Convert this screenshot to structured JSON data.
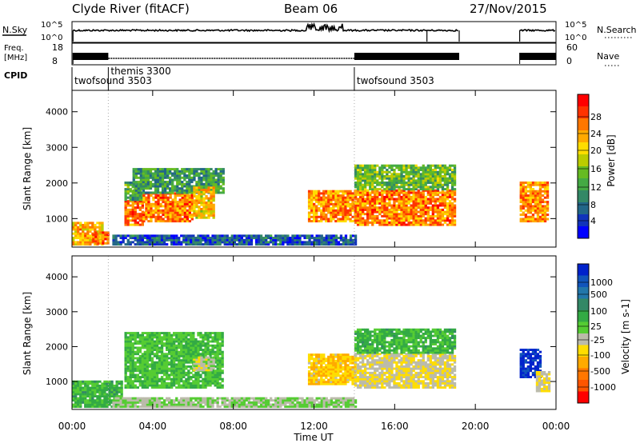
{
  "header": {
    "station": "Clyde River (fitACF)",
    "beam": "Beam 06",
    "date": "27/Nov/2015"
  },
  "strips": {
    "nsky_label": "N.Sky",
    "nsearch_label": "N.Search",
    "log_top": "10^5",
    "log_bottom": "10^0",
    "freq_label": "Freq.",
    "freq_unit": "[MHz]",
    "freq_ticks": [
      "18",
      "8"
    ],
    "nave_label": "Nave",
    "nave_ticks": [
      "60",
      "0"
    ],
    "cpid_label": "CPID",
    "cpid_segments": [
      {
        "name": "twofsound 3503",
        "start_hour": 0.0
      },
      {
        "name": "themis 3300",
        "start_hour": 1.8
      },
      {
        "name": "twofsound 3503",
        "start_hour": 14.0
      }
    ]
  },
  "axes": {
    "xlabel": "Time UT",
    "x_ticks": [
      "00:00",
      "04:00",
      "08:00",
      "12:00",
      "16:00",
      "20:00",
      "00:00"
    ],
    "x_range_hours": [
      0,
      24
    ],
    "ylabel": "Slant Range [km]",
    "y_ticks": [
      1000,
      2000,
      3000,
      4000
    ],
    "y_range_km": [
      200,
      4600
    ]
  },
  "power_scale": {
    "label": "Power [dB]",
    "ticks": [
      "28",
      "24",
      "20",
      "16",
      "12",
      "8",
      "4"
    ],
    "colors": [
      "#ff0000",
      "#ff3300",
      "#ff7700",
      "#ffaa00",
      "#ffdd00",
      "#bbcc00",
      "#66bb22",
      "#44aa44",
      "#338866",
      "#226688",
      "#1133bb",
      "#0000ff"
    ]
  },
  "velocity_scale": {
    "label": "Velocity [m s-1]",
    "ticks": [
      "1000",
      "500",
      "100",
      "25",
      "-25",
      "-100",
      "-500",
      "-1000"
    ],
    "colors": [
      "#0022cc",
      "#1155bb",
      "#2277aa",
      "#338866",
      "#33aa44",
      "#55cc33",
      "#bbbbaa",
      "#ffdd00",
      "#ffaa00",
      "#ff7700",
      "#ff5500",
      "#ff0000"
    ]
  },
  "chart_data": [
    {
      "type": "heatmap",
      "title": "Power",
      "xlabel": "Time UT",
      "ylabel": "Slant Range [km]",
      "colorbar_label": "Power [dB]",
      "x_range": [
        0,
        24
      ],
      "y_range": [
        200,
        4600
      ],
      "clim": [
        0,
        32
      ],
      "regions": [
        {
          "t0": 0.0,
          "t1": 1.5,
          "r0": 250,
          "r1": 900,
          "value": 22
        },
        {
          "t0": 1.0,
          "t1": 1.8,
          "r0": 280,
          "r1": 600,
          "value": 26
        },
        {
          "t0": 2.6,
          "t1": 3.5,
          "r0": 800,
          "r1": 1500,
          "value": 26
        },
        {
          "t0": 2.6,
          "t1": 3.5,
          "r0": 1500,
          "r1": 2000,
          "value": 12
        },
        {
          "t0": 3.5,
          "t1": 6.0,
          "r0": 900,
          "r1": 1700,
          "value": 25
        },
        {
          "t0": 3.0,
          "t1": 7.5,
          "r0": 1700,
          "r1": 2400,
          "value": 11
        },
        {
          "t0": 6.0,
          "t1": 7.0,
          "r0": 1000,
          "r1": 1900,
          "value": 20
        },
        {
          "t0": 2.0,
          "t1": 14.0,
          "r0": 250,
          "r1": 500,
          "value": 6
        },
        {
          "t0": 11.7,
          "t1": 14.0,
          "r0": 900,
          "r1": 1800,
          "value": 24
        },
        {
          "t0": 14.0,
          "t1": 19.0,
          "r0": 800,
          "r1": 1800,
          "value": 25
        },
        {
          "t0": 14.0,
          "t1": 19.0,
          "r0": 1800,
          "r1": 2500,
          "value": 14
        },
        {
          "t0": 22.2,
          "t1": 23.6,
          "r0": 900,
          "r1": 2000,
          "value": 24
        }
      ]
    },
    {
      "type": "heatmap",
      "title": "Velocity",
      "xlabel": "Time UT",
      "ylabel": "Slant Range [km]",
      "colorbar_label": "Velocity [m s-1]",
      "x_range": [
        0,
        24
      ],
      "y_range": [
        200,
        4600
      ],
      "clim": [
        -1000,
        1000
      ],
      "regions": [
        {
          "t0": 0.0,
          "t1": 2.5,
          "r0": 250,
          "r1": 1000,
          "value": 200
        },
        {
          "t0": 2.6,
          "t1": 7.5,
          "r0": 800,
          "r1": 2400,
          "value": 150
        },
        {
          "t0": 6.0,
          "t1": 7.0,
          "r0": 1300,
          "r1": 1700,
          "value": -80
        },
        {
          "t0": 2.0,
          "t1": 14.0,
          "r0": 250,
          "r1": 500,
          "value": 10
        },
        {
          "t0": 11.7,
          "t1": 14.0,
          "r0": 900,
          "r1": 1800,
          "value": -300
        },
        {
          "t0": 14.0,
          "t1": 19.0,
          "r0": 800,
          "r1": 1800,
          "value": -150
        },
        {
          "t0": 14.0,
          "t1": 19.0,
          "r0": 1800,
          "r1": 2500,
          "value": 200
        },
        {
          "t0": 22.2,
          "t1": 23.2,
          "r0": 1100,
          "r1": 1900,
          "value": 900
        },
        {
          "t0": 23.0,
          "t1": 23.7,
          "r0": 700,
          "r1": 1300,
          "value": -150
        }
      ]
    }
  ]
}
